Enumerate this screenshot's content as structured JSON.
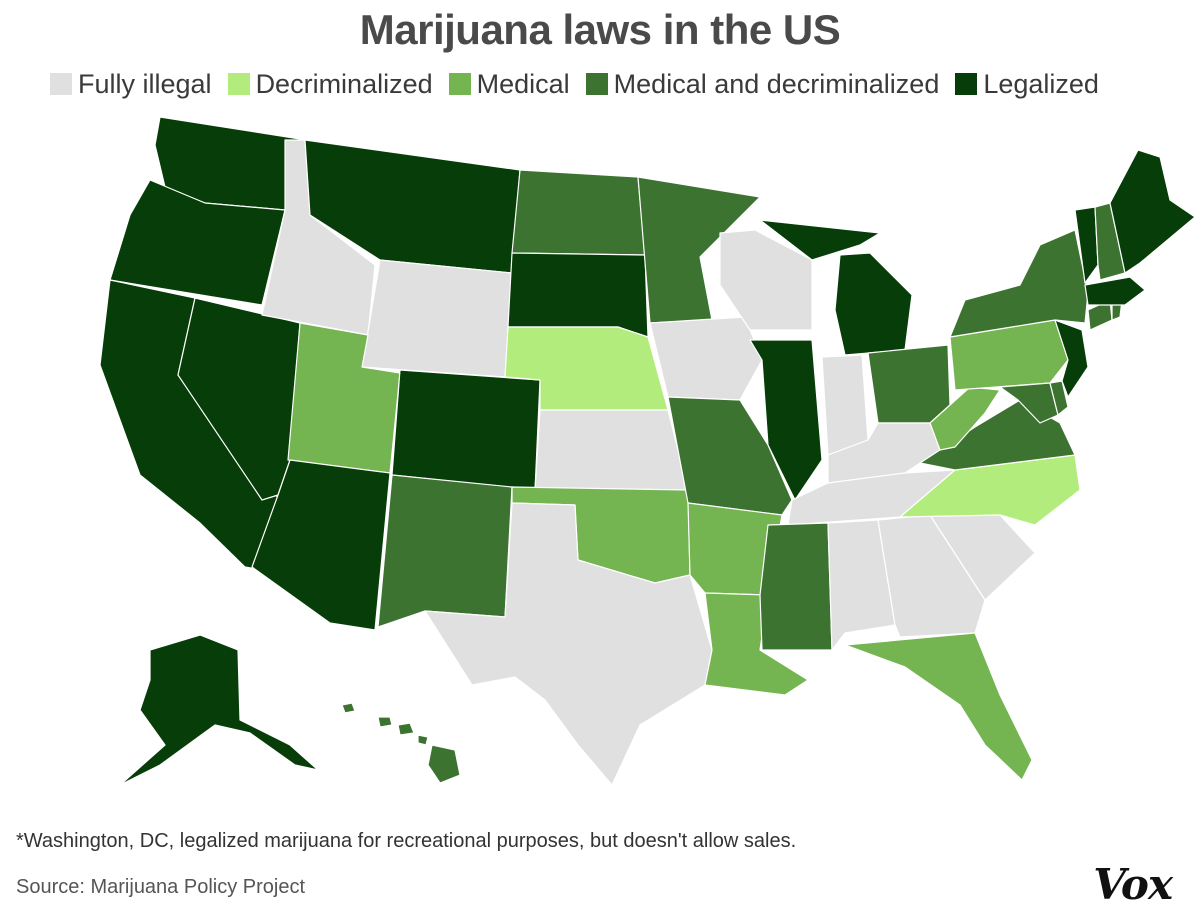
{
  "title": "Marijuana laws in the US",
  "legend": [
    {
      "label": "Fully illegal",
      "color": "#e0e0e0"
    },
    {
      "label": "Decriminalized",
      "color": "#b2ec7c"
    },
    {
      "label": "Medical",
      "color": "#74b451"
    },
    {
      "label": "Medical and decriminalized",
      "color": "#3d7330"
    },
    {
      "label": "Legalized",
      "color": "#063d08"
    }
  ],
  "states": {
    "WA": "Legalized",
    "OR": "Legalized",
    "CA": "Legalized",
    "NV": "Legalized",
    "ID": "Fully illegal",
    "MT": "Legalized",
    "WY": "Fully illegal",
    "UT": "Medical",
    "AZ": "Legalized",
    "CO": "Legalized",
    "NM": "Medical and decriminalized",
    "ND": "Medical and decriminalized",
    "SD": "Legalized",
    "NE": "Decriminalized",
    "KS": "Fully illegal",
    "OK": "Medical",
    "TX": "Fully illegal",
    "MN": "Medical and decriminalized",
    "IA": "Fully illegal",
    "MO": "Medical and decriminalized",
    "AR": "Medical",
    "LA": "Medical",
    "WI": "Fully illegal",
    "IL": "Legalized",
    "MI": "Legalized",
    "IN": "Fully illegal",
    "OH": "Medical and decriminalized",
    "KY": "Fully illegal",
    "TN": "Fully illegal",
    "MS": "Medical and decriminalized",
    "AL": "Fully illegal",
    "GA": "Fully illegal",
    "FL": "Medical",
    "SC": "Fully illegal",
    "NC": "Decriminalized",
    "VA": "Medical and decriminalized",
    "WV": "Medical",
    "PA": "Medical",
    "NY": "Medical and decriminalized",
    "VT": "Legalized",
    "NH": "Medical and decriminalized",
    "ME": "Legalized",
    "MA": "Legalized",
    "RI": "Medical and decriminalized",
    "CT": "Medical and decriminalized",
    "NJ": "Legalized",
    "DE": "Medical and decriminalized",
    "MD": "Medical and decriminalized",
    "AK": "Legalized",
    "HI": "Medical and decriminalized"
  },
  "footnote": "*Washington, DC, legalized marijuana for recreational purposes, but doesn't allow sales.",
  "source": "Source: Marijuana Policy Project",
  "logo": "Vox"
}
